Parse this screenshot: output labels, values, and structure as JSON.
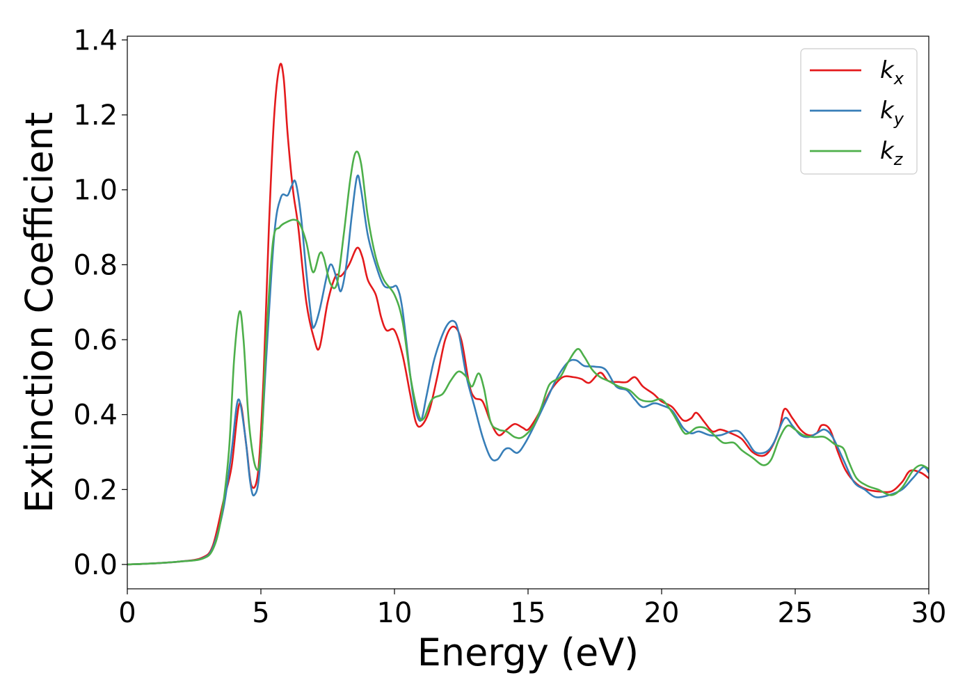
{
  "chart_data": {
    "type": "line",
    "title": "",
    "xlabel": "Energy (eV)",
    "ylabel": "Extinction Coefficient",
    "xlim": [
      0,
      30
    ],
    "ylim": [
      -0.065,
      1.41
    ],
    "xticks": [
      0,
      5,
      10,
      15,
      20,
      25,
      30
    ],
    "xtick_labels": [
      "0",
      "5",
      "10",
      "15",
      "20",
      "25",
      "30"
    ],
    "yticks": [
      0.0,
      0.2,
      0.4,
      0.6,
      0.8,
      1.0,
      1.2,
      1.4
    ],
    "ytick_labels": [
      "0.0",
      "0.2",
      "0.4",
      "0.6",
      "0.8",
      "1.0",
      "1.2",
      "1.4"
    ],
    "grid": false,
    "legend_position": "top-right",
    "series": [
      {
        "name": "k",
        "subscript": "x",
        "color": "#e41a1c",
        "points": [
          [
            0,
            0
          ],
          [
            1,
            0.003
          ],
          [
            2,
            0.008
          ],
          [
            2.8,
            0.018
          ],
          [
            3.2,
            0.05
          ],
          [
            3.6,
            0.17
          ],
          [
            3.9,
            0.26
          ],
          [
            4.2,
            0.43
          ],
          [
            4.45,
            0.32
          ],
          [
            4.65,
            0.21
          ],
          [
            4.9,
            0.25
          ],
          [
            5.1,
            0.5
          ],
          [
            5.3,
            0.9
          ],
          [
            5.5,
            1.2
          ],
          [
            5.7,
            1.33
          ],
          [
            5.85,
            1.3
          ],
          [
            6.0,
            1.15
          ],
          [
            6.2,
            1.0
          ],
          [
            6.4,
            0.9
          ],
          [
            6.7,
            0.7
          ],
          [
            7.0,
            0.6
          ],
          [
            7.2,
            0.58
          ],
          [
            7.5,
            0.7
          ],
          [
            7.8,
            0.77
          ],
          [
            8.0,
            0.77
          ],
          [
            8.3,
            0.8
          ],
          [
            8.6,
            0.845
          ],
          [
            8.8,
            0.82
          ],
          [
            9.0,
            0.76
          ],
          [
            9.3,
            0.72
          ],
          [
            9.5,
            0.66
          ],
          [
            9.7,
            0.625
          ],
          [
            10.0,
            0.625
          ],
          [
            10.3,
            0.56
          ],
          [
            10.6,
            0.45
          ],
          [
            10.8,
            0.38
          ],
          [
            11.0,
            0.37
          ],
          [
            11.3,
            0.41
          ],
          [
            11.6,
            0.5
          ],
          [
            11.9,
            0.6
          ],
          [
            12.2,
            0.635
          ],
          [
            12.5,
            0.6
          ],
          [
            12.8,
            0.48
          ],
          [
            13.0,
            0.445
          ],
          [
            13.3,
            0.435
          ],
          [
            13.6,
            0.38
          ],
          [
            13.9,
            0.345
          ],
          [
            14.2,
            0.36
          ],
          [
            14.5,
            0.375
          ],
          [
            14.8,
            0.365
          ],
          [
            15.0,
            0.36
          ],
          [
            15.3,
            0.39
          ],
          [
            15.6,
            0.43
          ],
          [
            15.9,
            0.47
          ],
          [
            16.3,
            0.5
          ],
          [
            16.7,
            0.5
          ],
          [
            17.0,
            0.495
          ],
          [
            17.3,
            0.485
          ],
          [
            17.7,
            0.512
          ],
          [
            18.0,
            0.49
          ],
          [
            18.4,
            0.487
          ],
          [
            18.7,
            0.487
          ],
          [
            19.0,
            0.5
          ],
          [
            19.3,
            0.475
          ],
          [
            19.7,
            0.455
          ],
          [
            20.0,
            0.435
          ],
          [
            20.4,
            0.42
          ],
          [
            20.8,
            0.385
          ],
          [
            21.1,
            0.39
          ],
          [
            21.3,
            0.405
          ],
          [
            21.6,
            0.38
          ],
          [
            21.9,
            0.355
          ],
          [
            22.2,
            0.36
          ],
          [
            22.6,
            0.35
          ],
          [
            23.0,
            0.335
          ],
          [
            23.4,
            0.3
          ],
          [
            23.8,
            0.29
          ],
          [
            24.1,
            0.31
          ],
          [
            24.4,
            0.36
          ],
          [
            24.6,
            0.415
          ],
          [
            24.9,
            0.39
          ],
          [
            25.2,
            0.36
          ],
          [
            25.5,
            0.345
          ],
          [
            25.8,
            0.35
          ],
          [
            26.0,
            0.372
          ],
          [
            26.3,
            0.36
          ],
          [
            26.6,
            0.3
          ],
          [
            26.9,
            0.25
          ],
          [
            27.3,
            0.215
          ],
          [
            27.7,
            0.2
          ],
          [
            28.1,
            0.195
          ],
          [
            28.6,
            0.195
          ],
          [
            29.0,
            0.22
          ],
          [
            29.3,
            0.25
          ],
          [
            29.7,
            0.245
          ],
          [
            30,
            0.23
          ]
        ]
      },
      {
        "name": "k",
        "subscript": "y",
        "color": "#377eb8",
        "points": [
          [
            0,
            0
          ],
          [
            1,
            0.003
          ],
          [
            2,
            0.008
          ],
          [
            2.8,
            0.016
          ],
          [
            3.2,
            0.045
          ],
          [
            3.6,
            0.15
          ],
          [
            3.9,
            0.3
          ],
          [
            4.15,
            0.44
          ],
          [
            4.4,
            0.35
          ],
          [
            4.6,
            0.22
          ],
          [
            4.75,
            0.185
          ],
          [
            4.95,
            0.25
          ],
          [
            5.2,
            0.55
          ],
          [
            5.5,
            0.88
          ],
          [
            5.75,
            0.98
          ],
          [
            6.0,
            0.985
          ],
          [
            6.15,
            1.01
          ],
          [
            6.3,
            1.02
          ],
          [
            6.5,
            0.93
          ],
          [
            6.7,
            0.78
          ],
          [
            6.9,
            0.65
          ],
          [
            7.0,
            0.635
          ],
          [
            7.2,
            0.68
          ],
          [
            7.5,
            0.78
          ],
          [
            7.65,
            0.8
          ],
          [
            7.85,
            0.76
          ],
          [
            8.0,
            0.73
          ],
          [
            8.2,
            0.8
          ],
          [
            8.4,
            0.93
          ],
          [
            8.6,
            1.035
          ],
          [
            8.75,
            1.0
          ],
          [
            9.0,
            0.88
          ],
          [
            9.3,
            0.8
          ],
          [
            9.6,
            0.745
          ],
          [
            9.9,
            0.74
          ],
          [
            10.1,
            0.74
          ],
          [
            10.3,
            0.68
          ],
          [
            10.6,
            0.5
          ],
          [
            10.8,
            0.41
          ],
          [
            11.0,
            0.385
          ],
          [
            11.2,
            0.45
          ],
          [
            11.5,
            0.55
          ],
          [
            11.9,
            0.63
          ],
          [
            12.2,
            0.65
          ],
          [
            12.4,
            0.62
          ],
          [
            12.7,
            0.5
          ],
          [
            13.0,
            0.42
          ],
          [
            13.3,
            0.34
          ],
          [
            13.6,
            0.285
          ],
          [
            13.85,
            0.28
          ],
          [
            14.1,
            0.305
          ],
          [
            14.3,
            0.31
          ],
          [
            14.6,
            0.298
          ],
          [
            14.9,
            0.325
          ],
          [
            15.3,
            0.38
          ],
          [
            15.7,
            0.44
          ],
          [
            16.1,
            0.5
          ],
          [
            16.5,
            0.54
          ],
          [
            16.8,
            0.545
          ],
          [
            17.1,
            0.53
          ],
          [
            17.5,
            0.528
          ],
          [
            17.9,
            0.52
          ],
          [
            18.3,
            0.475
          ],
          [
            18.7,
            0.465
          ],
          [
            19.0,
            0.44
          ],
          [
            19.3,
            0.42
          ],
          [
            19.7,
            0.43
          ],
          [
            20.0,
            0.425
          ],
          [
            20.4,
            0.41
          ],
          [
            20.8,
            0.365
          ],
          [
            21.1,
            0.35
          ],
          [
            21.4,
            0.355
          ],
          [
            21.8,
            0.345
          ],
          [
            22.2,
            0.345
          ],
          [
            22.6,
            0.355
          ],
          [
            22.9,
            0.355
          ],
          [
            23.2,
            0.33
          ],
          [
            23.5,
            0.3
          ],
          [
            23.9,
            0.3
          ],
          [
            24.2,
            0.325
          ],
          [
            24.6,
            0.39
          ],
          [
            24.9,
            0.37
          ],
          [
            25.2,
            0.345
          ],
          [
            25.5,
            0.34
          ],
          [
            25.8,
            0.35
          ],
          [
            26.1,
            0.36
          ],
          [
            26.4,
            0.34
          ],
          [
            26.8,
            0.28
          ],
          [
            27.2,
            0.22
          ],
          [
            27.6,
            0.2
          ],
          [
            28.0,
            0.18
          ],
          [
            28.5,
            0.185
          ],
          [
            29.0,
            0.2
          ],
          [
            29.4,
            0.23
          ],
          [
            29.8,
            0.26
          ],
          [
            30,
            0.245
          ]
        ]
      },
      {
        "name": "k",
        "subscript": "z",
        "color": "#4daf4a",
        "points": [
          [
            0,
            0
          ],
          [
            1,
            0.003
          ],
          [
            2,
            0.008
          ],
          [
            2.8,
            0.015
          ],
          [
            3.2,
            0.04
          ],
          [
            3.5,
            0.12
          ],
          [
            3.8,
            0.3
          ],
          [
            4.0,
            0.55
          ],
          [
            4.2,
            0.675
          ],
          [
            4.35,
            0.6
          ],
          [
            4.55,
            0.38
          ],
          [
            4.8,
            0.26
          ],
          [
            5.0,
            0.3
          ],
          [
            5.2,
            0.6
          ],
          [
            5.45,
            0.86
          ],
          [
            5.7,
            0.9
          ],
          [
            6.0,
            0.915
          ],
          [
            6.25,
            0.92
          ],
          [
            6.45,
            0.91
          ],
          [
            6.7,
            0.86
          ],
          [
            6.95,
            0.78
          ],
          [
            7.2,
            0.83
          ],
          [
            7.35,
            0.82
          ],
          [
            7.6,
            0.75
          ],
          [
            7.85,
            0.75
          ],
          [
            8.1,
            0.88
          ],
          [
            8.35,
            1.03
          ],
          [
            8.55,
            1.1
          ],
          [
            8.75,
            1.07
          ],
          [
            9.0,
            0.93
          ],
          [
            9.3,
            0.82
          ],
          [
            9.6,
            0.76
          ],
          [
            10.0,
            0.72
          ],
          [
            10.3,
            0.65
          ],
          [
            10.6,
            0.5
          ],
          [
            10.9,
            0.4
          ],
          [
            11.1,
            0.39
          ],
          [
            11.4,
            0.44
          ],
          [
            11.8,
            0.455
          ],
          [
            12.1,
            0.49
          ],
          [
            12.4,
            0.515
          ],
          [
            12.7,
            0.5
          ],
          [
            12.9,
            0.475
          ],
          [
            13.15,
            0.51
          ],
          [
            13.35,
            0.47
          ],
          [
            13.6,
            0.38
          ],
          [
            13.9,
            0.36
          ],
          [
            14.2,
            0.355
          ],
          [
            14.5,
            0.34
          ],
          [
            14.8,
            0.34
          ],
          [
            15.2,
            0.37
          ],
          [
            15.5,
            0.42
          ],
          [
            15.8,
            0.48
          ],
          [
            16.2,
            0.5
          ],
          [
            16.5,
            0.54
          ],
          [
            16.85,
            0.575
          ],
          [
            17.1,
            0.555
          ],
          [
            17.4,
            0.52
          ],
          [
            17.7,
            0.5
          ],
          [
            18.0,
            0.49
          ],
          [
            18.4,
            0.475
          ],
          [
            18.8,
            0.465
          ],
          [
            19.2,
            0.44
          ],
          [
            19.6,
            0.435
          ],
          [
            20.0,
            0.44
          ],
          [
            20.4,
            0.405
          ],
          [
            20.8,
            0.355
          ],
          [
            21.0,
            0.35
          ],
          [
            21.3,
            0.365
          ],
          [
            21.6,
            0.365
          ],
          [
            21.9,
            0.35
          ],
          [
            22.3,
            0.325
          ],
          [
            22.7,
            0.325
          ],
          [
            23.0,
            0.305
          ],
          [
            23.4,
            0.285
          ],
          [
            23.8,
            0.265
          ],
          [
            24.1,
            0.28
          ],
          [
            24.4,
            0.335
          ],
          [
            24.7,
            0.37
          ],
          [
            25.0,
            0.36
          ],
          [
            25.3,
            0.345
          ],
          [
            25.7,
            0.34
          ],
          [
            26.1,
            0.34
          ],
          [
            26.5,
            0.32
          ],
          [
            26.8,
            0.31
          ],
          [
            27.0,
            0.275
          ],
          [
            27.3,
            0.23
          ],
          [
            27.7,
            0.21
          ],
          [
            28.1,
            0.2
          ],
          [
            28.6,
            0.185
          ],
          [
            29.0,
            0.205
          ],
          [
            29.4,
            0.25
          ],
          [
            29.7,
            0.265
          ],
          [
            30,
            0.255
          ]
        ]
      }
    ]
  }
}
